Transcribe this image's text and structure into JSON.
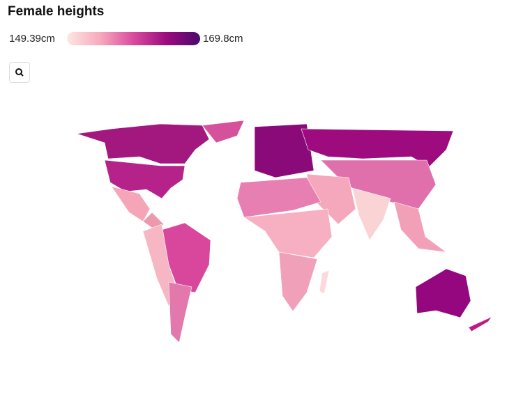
{
  "header": {
    "title": "Female heights"
  },
  "legend": {
    "min_label": "149.39cm",
    "max_label": "169.8cm",
    "colors": [
      "#fde7e3",
      "#f7a9bd",
      "#d94b9e",
      "#9b0b7e",
      "#4b0a6c"
    ]
  }
}
